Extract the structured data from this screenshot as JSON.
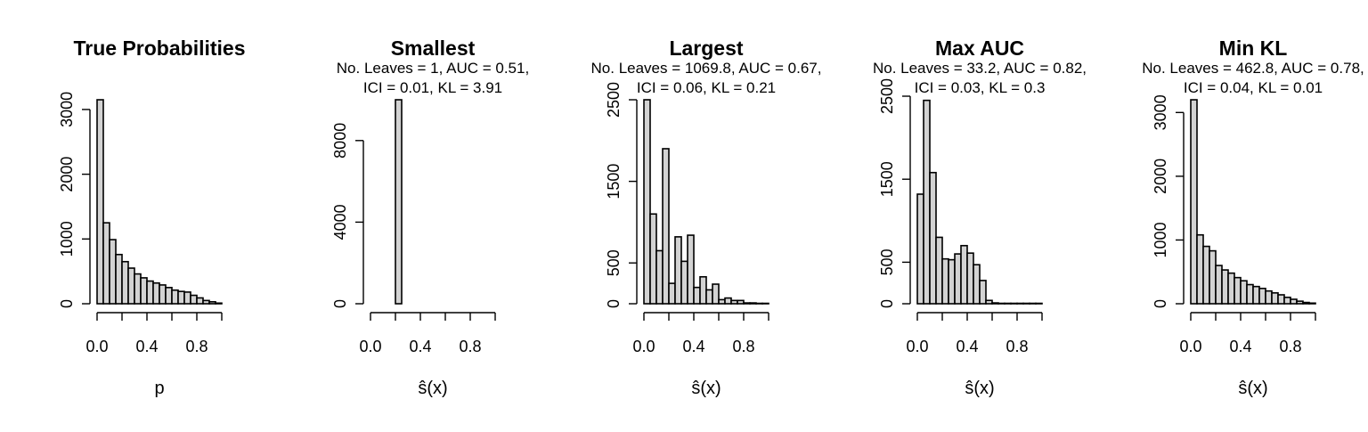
{
  "chart_data": [
    {
      "type": "bar",
      "title": "True Probabilities",
      "subtitle": [],
      "xlabel": "p",
      "ylabel": "",
      "bin_width": 0.05,
      "bin_start": 0.0,
      "values": [
        3150,
        1250,
        990,
        760,
        650,
        550,
        460,
        400,
        350,
        320,
        290,
        250,
        210,
        190,
        180,
        130,
        90,
        50,
        30,
        10
      ],
      "xlim": [
        0,
        1
      ],
      "ylim": [
        0,
        3150
      ],
      "yticks": [
        0,
        1000,
        2000,
        3000
      ],
      "ytick_labels": [
        "0",
        "1000",
        "2000",
        "3000"
      ],
      "xticks": [
        0.0,
        0.4,
        0.8
      ],
      "xtick_labels": [
        "0.0",
        "0.4",
        "0.8"
      ],
      "bar_color": "#d3d3d3",
      "grid": false
    },
    {
      "type": "bar",
      "title": "Smallest",
      "subtitle": [
        "No. Leaves = 1, AUC = 0.51,",
        "ICI = 0.01, KL = 3.91"
      ],
      "xlabel": "ŝ(x)",
      "ylabel": "",
      "bin_width": 0.05,
      "bin_start": 0.0,
      "values": [
        0,
        0,
        0,
        0,
        10000,
        0,
        0,
        0,
        0,
        0,
        0,
        0,
        0,
        0,
        0,
        0,
        0,
        0,
        0,
        0
      ],
      "xlim": [
        0,
        1
      ],
      "ylim": [
        0,
        10000
      ],
      "yticks": [
        0,
        4000,
        8000
      ],
      "ytick_labels": [
        "0",
        "4000",
        "8000"
      ],
      "xticks": [
        0.0,
        0.4,
        0.8
      ],
      "xtick_labels": [
        "0.0",
        "0.4",
        "0.8"
      ],
      "bar_color": "#d3d3d3",
      "grid": false
    },
    {
      "type": "bar",
      "title": "Largest",
      "subtitle": [
        "No. Leaves = 1069.8, AUC = 0.67,",
        "ICI = 0.06, KL = 0.21"
      ],
      "xlabel": "ŝ(x)",
      "ylabel": "",
      "bin_width": 0.05,
      "bin_start": 0.0,
      "values": [
        2500,
        1100,
        650,
        1900,
        250,
        820,
        520,
        840,
        200,
        330,
        170,
        240,
        50,
        70,
        40,
        40,
        10,
        10,
        5,
        5
      ],
      "xlim": [
        0,
        1
      ],
      "ylim": [
        0,
        2500
      ],
      "yticks": [
        0,
        500,
        1500,
        2500
      ],
      "ytick_labels": [
        "0",
        "500",
        "1500",
        "2500"
      ],
      "xticks": [
        0.0,
        0.4,
        0.8
      ],
      "xtick_labels": [
        "0.0",
        "0.4",
        "0.8"
      ],
      "bar_color": "#d3d3d3",
      "grid": false
    },
    {
      "type": "bar",
      "title": "Max AUC",
      "subtitle": [
        "No. Leaves = 33.2, AUC = 0.82,",
        "ICI = 0.03, KL = 0.3"
      ],
      "xlabel": "ŝ(x)",
      "ylabel": "",
      "bin_width": 0.05,
      "bin_start": 0.0,
      "values": [
        1320,
        2450,
        1580,
        800,
        540,
        530,
        600,
        700,
        610,
        470,
        280,
        40,
        10,
        5,
        5,
        5,
        5,
        5,
        5,
        5
      ],
      "xlim": [
        0,
        1
      ],
      "ylim": [
        0,
        2500
      ],
      "yticks": [
        0,
        500,
        1500,
        2500
      ],
      "ytick_labels": [
        "0",
        "500",
        "1500",
        "2500"
      ],
      "xticks": [
        0.0,
        0.4,
        0.8
      ],
      "xtick_labels": [
        "0.0",
        "0.4",
        "0.8"
      ],
      "bar_color": "#d3d3d3",
      "grid": false
    },
    {
      "type": "bar",
      "title": "Min KL",
      "subtitle": [
        "No. Leaves = 462.8, AUC = 0.78,",
        "ICI = 0.04, KL = 0.01"
      ],
      "xlabel": "ŝ(x)",
      "ylabel": "",
      "bin_width": 0.05,
      "bin_start": 0.0,
      "values": [
        3200,
        1080,
        900,
        830,
        600,
        530,
        480,
        410,
        360,
        300,
        270,
        240,
        200,
        170,
        140,
        100,
        70,
        40,
        20,
        10
      ],
      "xlim": [
        0,
        1
      ],
      "ylim": [
        0,
        3200
      ],
      "yticks": [
        0,
        1000,
        2000,
        3000
      ],
      "ytick_labels": [
        "0",
        "1000",
        "2000",
        "3000"
      ],
      "xticks": [
        0.0,
        0.4,
        0.8
      ],
      "xtick_labels": [
        "0.0",
        "0.4",
        "0.8"
      ],
      "bar_color": "#d3d3d3",
      "grid": false
    }
  ]
}
